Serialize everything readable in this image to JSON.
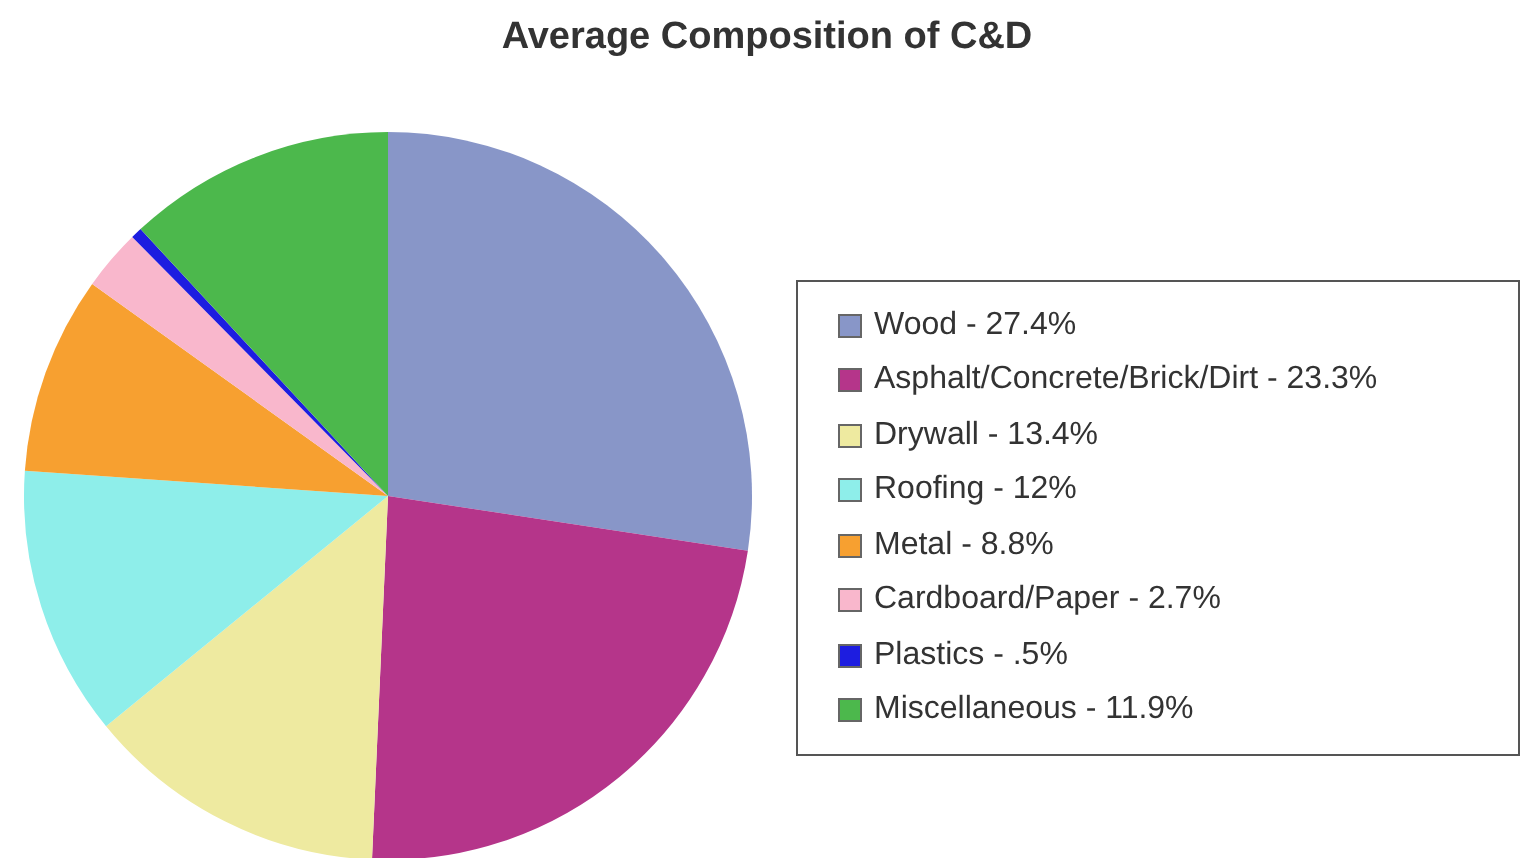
{
  "chart_data": {
    "type": "pie",
    "title": "Average Composition of C&D",
    "categories": [
      "Wood  -  27.4%",
      "Asphalt/Concrete/Brick/Dirt  -  23.3%",
      "Drywall  -  13.4%",
      "Roofing  -  12%",
      "Metal  -  8.8%",
      "Cardboard/Paper  -  2.7%",
      "Plastics  -  .5%",
      "Miscellaneous  -  11.9%"
    ],
    "values": [
      27.4,
      23.3,
      13.4,
      12,
      8.8,
      2.7,
      0.5,
      11.9
    ],
    "colors": [
      "#8896c8",
      "#b5358a",
      "#eeeaa0",
      "#8eeeea",
      "#f7a030",
      "#f9b7cc",
      "#1d1de0",
      "#4cb84c"
    ],
    "legend": "right"
  }
}
